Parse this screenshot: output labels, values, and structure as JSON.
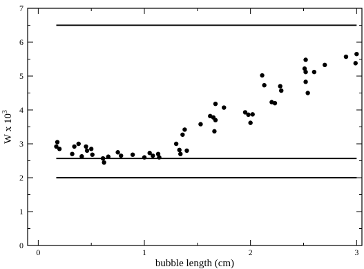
{
  "chart_data": {
    "type": "scatter",
    "title": "",
    "xlabel": "bubble length (cm)",
    "ylabel": "W x 10",
    "ylabel_superscript": "3",
    "xlim": [
      -0.1,
      3.05
    ],
    "ylim": [
      0,
      7
    ],
    "x_ticks": [
      0,
      1,
      2,
      3
    ],
    "x_tick_labels": [
      "0",
      "1",
      "2",
      "3"
    ],
    "y_ticks": [
      0,
      1,
      2,
      3,
      4,
      5,
      6,
      7
    ],
    "y_tick_labels": [
      "0",
      "1",
      "2",
      "3",
      "4",
      "5",
      "6",
      "7"
    ],
    "grid": false,
    "legend": "none",
    "marker_color": "#000000",
    "reference_lines": [
      {
        "y": 6.5,
        "x": [
          0.17,
          3.0
        ]
      },
      {
        "y": 2.57,
        "x": [
          0.17,
          3.0
        ]
      },
      {
        "y": 2.0,
        "x": [
          0.17,
          3.0
        ]
      }
    ],
    "points": [
      {
        "x": 0.17,
        "y": 2.92
      },
      {
        "x": 0.18,
        "y": 3.05
      },
      {
        "x": 0.2,
        "y": 2.85
      },
      {
        "x": 0.32,
        "y": 2.7
      },
      {
        "x": 0.34,
        "y": 2.92
      },
      {
        "x": 0.38,
        "y": 3.0
      },
      {
        "x": 0.41,
        "y": 2.63
      },
      {
        "x": 0.45,
        "y": 2.92
      },
      {
        "x": 0.46,
        "y": 2.8
      },
      {
        "x": 0.5,
        "y": 2.85
      },
      {
        "x": 0.51,
        "y": 2.68
      },
      {
        "x": 0.61,
        "y": 2.57
      },
      {
        "x": 0.62,
        "y": 2.45
      },
      {
        "x": 0.66,
        "y": 2.62
      },
      {
        "x": 0.75,
        "y": 2.75
      },
      {
        "x": 0.78,
        "y": 2.65
      },
      {
        "x": 0.89,
        "y": 2.68
      },
      {
        "x": 1.0,
        "y": 2.6
      },
      {
        "x": 1.05,
        "y": 2.73
      },
      {
        "x": 1.08,
        "y": 2.65
      },
      {
        "x": 1.13,
        "y": 2.7
      },
      {
        "x": 1.14,
        "y": 2.6
      },
      {
        "x": 1.3,
        "y": 3.0
      },
      {
        "x": 1.33,
        "y": 2.82
      },
      {
        "x": 1.34,
        "y": 2.7
      },
      {
        "x": 1.36,
        "y": 3.27
      },
      {
        "x": 1.38,
        "y": 3.42
      },
      {
        "x": 1.4,
        "y": 2.8
      },
      {
        "x": 1.53,
        "y": 3.58
      },
      {
        "x": 1.62,
        "y": 3.82
      },
      {
        "x": 1.65,
        "y": 3.78
      },
      {
        "x": 1.66,
        "y": 3.37
      },
      {
        "x": 1.67,
        "y": 3.7
      },
      {
        "x": 1.67,
        "y": 4.18
      },
      {
        "x": 1.75,
        "y": 4.07
      },
      {
        "x": 1.95,
        "y": 3.93
      },
      {
        "x": 1.98,
        "y": 3.86
      },
      {
        "x": 2.0,
        "y": 3.62
      },
      {
        "x": 2.02,
        "y": 3.87
      },
      {
        "x": 2.11,
        "y": 5.02
      },
      {
        "x": 2.13,
        "y": 4.73
      },
      {
        "x": 2.2,
        "y": 4.23
      },
      {
        "x": 2.23,
        "y": 4.2
      },
      {
        "x": 2.28,
        "y": 4.7
      },
      {
        "x": 2.29,
        "y": 4.57
      },
      {
        "x": 2.51,
        "y": 5.22
      },
      {
        "x": 2.52,
        "y": 5.12
      },
      {
        "x": 2.52,
        "y": 4.83
      },
      {
        "x": 2.52,
        "y": 5.48
      },
      {
        "x": 2.54,
        "y": 4.5
      },
      {
        "x": 2.6,
        "y": 5.12
      },
      {
        "x": 2.7,
        "y": 5.33
      },
      {
        "x": 2.9,
        "y": 5.57
      },
      {
        "x": 2.99,
        "y": 5.38
      },
      {
        "x": 3.0,
        "y": 5.65
      }
    ]
  }
}
